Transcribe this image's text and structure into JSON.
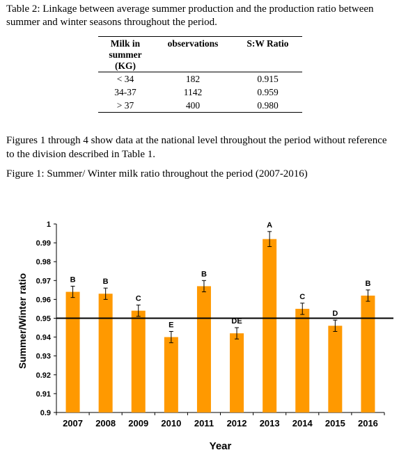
{
  "table": {
    "caption": "Table 2: Linkage between average summer production and the production ratio between summer and winter seasons throughout the period.",
    "headers": [
      "Milk in summer (KG)",
      "observations",
      "S:W Ratio"
    ],
    "rows": [
      [
        "< 34",
        "182",
        "0.915"
      ],
      [
        "34-37",
        "1142",
        "0.959"
      ],
      [
        "> 37",
        "400",
        "0.980"
      ]
    ]
  },
  "paragraph": "Figures 1 through 4 show data at the national level throughout the period without reference to the division described in Table 1.",
  "figure_caption": "Figure 1: Summer/ Winter milk ratio throughout the period (2007-2016)",
  "colors": {
    "bar": "#FF9900",
    "reference_line": "#000000"
  },
  "chart_data": {
    "type": "bar",
    "categories": [
      "2007",
      "2008",
      "2009",
      "2010",
      "2011",
      "2012",
      "2013",
      "2014",
      "2015",
      "2016"
    ],
    "series": [
      {
        "values": [
          0.964,
          0.963,
          0.954,
          0.94,
          0.967,
          0.942,
          0.992,
          0.955,
          0.946,
          0.962
        ],
        "error": [
          0.003,
          0.003,
          0.003,
          0.003,
          0.003,
          0.003,
          0.004,
          0.003,
          0.003,
          0.003
        ],
        "letters": [
          "B",
          "B",
          "C",
          "E",
          "B",
          "DE",
          "A",
          "C",
          "D",
          "B"
        ]
      }
    ],
    "reference_line": 0.95,
    "xlabel": "Year",
    "ylabel": "Summer/Winter ratio",
    "ylim": [
      0.9,
      1.0
    ],
    "yticks": [
      "0.9",
      "0.91",
      "0.92",
      "0.93",
      "0.94",
      "0.95",
      "0.96",
      "0.97",
      "0.98",
      "0.99",
      "1"
    ],
    "grid": false,
    "legend": "none"
  }
}
